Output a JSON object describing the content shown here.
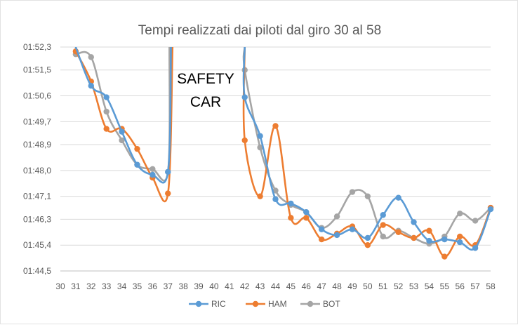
{
  "chart_data": {
    "type": "line",
    "title": "Tempi realizzati dai piloti dal giro 30 al 58",
    "xlabel": "",
    "ylabel": "",
    "x_ticks": [
      "30",
      "31",
      "32",
      "33",
      "34",
      "35",
      "36",
      "37",
      "38",
      "39",
      "40",
      "41",
      "42",
      "43",
      "44",
      "45",
      "46",
      "47",
      "48",
      "49",
      "50",
      "51",
      "52",
      "53",
      "54",
      "55",
      "56",
      "57",
      "58"
    ],
    "y_ticks": [
      {
        "label": "01:52,3",
        "value": 112.3
      },
      {
        "label": "01:51,5",
        "value": 111.5
      },
      {
        "label": "01:50,6",
        "value": 110.6
      },
      {
        "label": "01:49,7",
        "value": 109.7
      },
      {
        "label": "01:48,9",
        "value": 108.9
      },
      {
        "label": "01:48,0",
        "value": 108.0
      },
      {
        "label": "01:47,1",
        "value": 107.1
      },
      {
        "label": "01:46,3",
        "value": 106.3
      },
      {
        "label": "01:45,4",
        "value": 105.4
      },
      {
        "label": "01:44,5",
        "value": 104.5
      }
    ],
    "ylim": [
      104.5,
      112.3
    ],
    "xlim": [
      30,
      58
    ],
    "annotation": [
      "SAFETY",
      "CAR"
    ],
    "legend_position": "bottom",
    "series": [
      {
        "name": "RIC",
        "color": "#5b9bd5",
        "segments": [
          [
            [
              31,
              112.3
            ],
            [
              32,
              110.95
            ],
            [
              33,
              110.55
            ],
            [
              34,
              109.35
            ],
            [
              35,
              108.2
            ],
            [
              36,
              107.85
            ],
            [
              37,
              107.95
            ],
            [
              37.2,
              112.3
            ]
          ],
          [
            [
              42,
              112.3
            ],
            [
              42,
              110.55
            ],
            [
              43,
              109.2
            ],
            [
              44,
              107.0
            ],
            [
              45,
              106.85
            ],
            [
              46,
              106.55
            ],
            [
              47,
              105.95
            ],
            [
              48,
              105.75
            ],
            [
              49,
              105.95
            ],
            [
              50,
              105.65
            ],
            [
              51,
              106.45
            ],
            [
              52,
              107.05
            ],
            [
              53,
              106.2
            ],
            [
              54,
              105.55
            ],
            [
              55,
              105.6
            ],
            [
              56,
              105.5
            ],
            [
              57,
              105.3
            ],
            [
              58,
              106.65
            ]
          ]
        ]
      },
      {
        "name": "HAM",
        "color": "#ed7d31",
        "segments": [
          [
            [
              31,
              112.15
            ],
            [
              32,
              111.1
            ],
            [
              33,
              109.45
            ],
            [
              34,
              109.45
            ],
            [
              35,
              108.75
            ],
            [
              36,
              107.75
            ],
            [
              37,
              107.2
            ],
            [
              37.3,
              112.3
            ]
          ],
          [
            [
              42,
              112.3
            ],
            [
              42,
              109.05
            ],
            [
              43,
              107.1
            ],
            [
              44,
              109.55
            ],
            [
              45,
              106.35
            ],
            [
              46,
              106.35
            ],
            [
              47,
              105.6
            ],
            [
              48,
              105.8
            ],
            [
              49,
              106.05
            ],
            [
              50,
              105.4
            ],
            [
              51,
              106.1
            ],
            [
              52,
              105.85
            ],
            [
              53,
              105.65
            ],
            [
              54,
              105.9
            ],
            [
              55,
              105.0
            ],
            [
              56,
              105.7
            ],
            [
              57,
              105.4
            ],
            [
              58,
              106.7
            ]
          ]
        ]
      },
      {
        "name": "BOT",
        "color": "#a5a5a5",
        "segments": [
          [
            [
              31,
              112.05
            ],
            [
              32,
              111.95
            ],
            [
              33,
              110.05
            ],
            [
              34,
              109.05
            ],
            [
              35,
              108.2
            ],
            [
              36,
              108.05
            ],
            [
              37,
              107.95
            ],
            [
              37.1,
              112.3
            ]
          ],
          [
            [
              42,
              112.3
            ],
            [
              42,
              111.5
            ],
            [
              43,
              108.8
            ],
            [
              44,
              107.3
            ],
            [
              45,
              106.8
            ],
            [
              46,
              106.55
            ],
            [
              47,
              106.0
            ],
            [
              48,
              106.4
            ],
            [
              49,
              107.25
            ],
            [
              50,
              107.1
            ],
            [
              51,
              105.7
            ],
            [
              52,
              105.9
            ],
            [
              53,
              105.65
            ],
            [
              54,
              105.45
            ],
            [
              55,
              105.7
            ],
            [
              56,
              106.5
            ],
            [
              57,
              106.25
            ],
            [
              58,
              106.7
            ]
          ]
        ]
      }
    ]
  }
}
